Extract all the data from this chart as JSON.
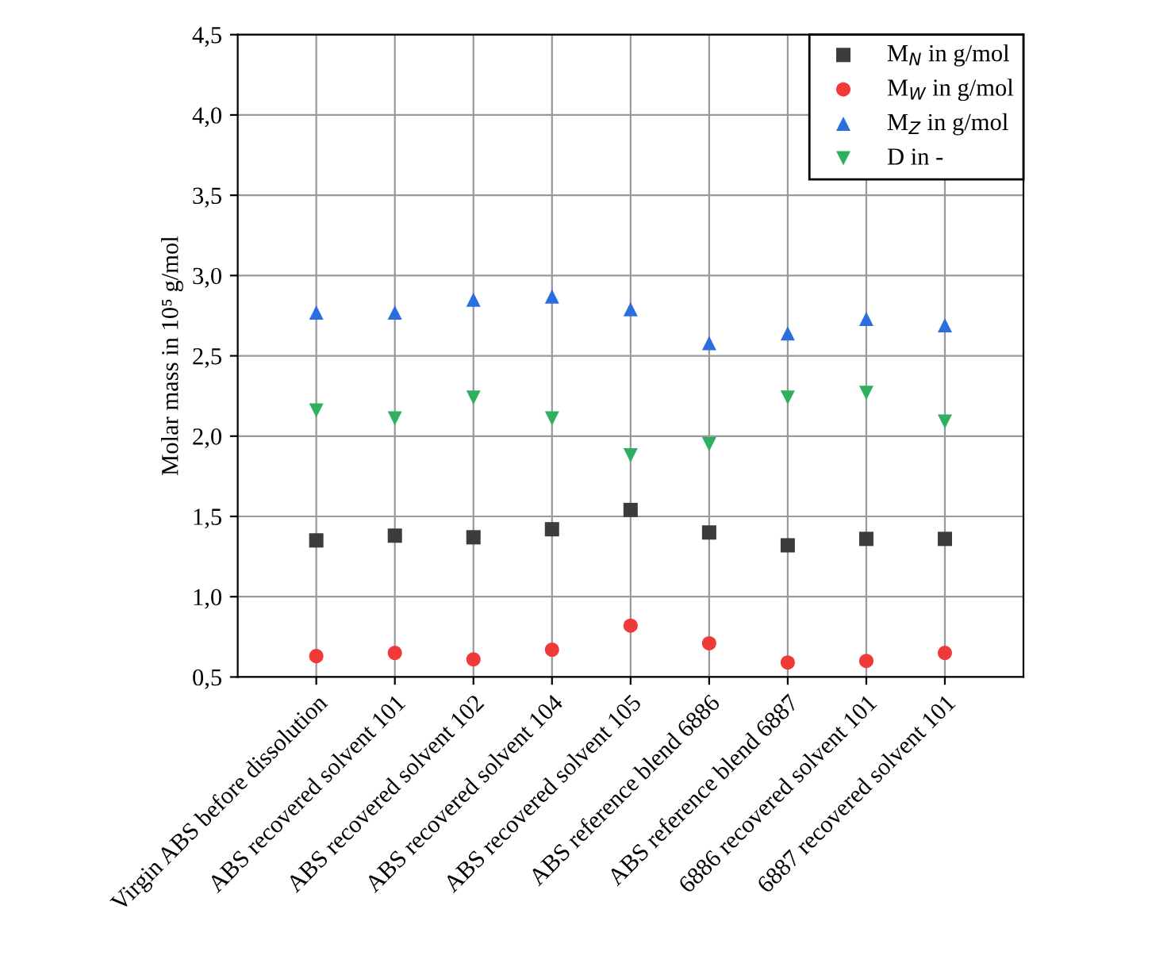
{
  "chart_data": {
    "type": "scatter",
    "ylabel": "Molar mass in 10⁵ g/mol",
    "categories": [
      "Virgin ABS before dissolution",
      "ABS recovered solvent 101",
      "ABS recovered solvent 102",
      "ABS recovered solvent 104",
      "ABS recovered solvent 105",
      "ABS reference blend 6886",
      "ABS reference blend 6887",
      "6886 recovered solvent 101",
      "6887 recovered solvent 101"
    ],
    "series": [
      {
        "name": "M$_{N}$ in g/mol",
        "color": "#3c3c3c",
        "marker": "square",
        "values": [
          1.35,
          1.38,
          1.37,
          1.42,
          1.54,
          1.4,
          1.32,
          1.36,
          1.36
        ]
      },
      {
        "name": "M$_{W}$ in g/mol",
        "color": "#f03a3a",
        "marker": "circle",
        "values": [
          0.63,
          0.65,
          0.61,
          0.67,
          0.82,
          0.71,
          0.59,
          0.6,
          0.65
        ]
      },
      {
        "name": "M$_{Z}$ in g/mol",
        "color": "#2a6fe0",
        "marker": "triangle",
        "values": [
          2.77,
          2.77,
          2.85,
          2.87,
          2.79,
          2.58,
          2.64,
          2.73,
          2.69
        ]
      },
      {
        "name": "D in -",
        "color": "#2fb060",
        "marker": "triangle_down",
        "values": [
          2.16,
          2.11,
          2.24,
          2.11,
          1.88,
          1.95,
          2.24,
          2.27,
          2.09
        ]
      }
    ],
    "ylim": [
      0.5,
      4.5
    ],
    "yticks": [
      {
        "value": 0.5,
        "label": "0,5"
      },
      {
        "value": 1.0,
        "label": "1,0"
      },
      {
        "value": 1.5,
        "label": "1,5"
      },
      {
        "value": 2.0,
        "label": "2,0"
      },
      {
        "value": 2.5,
        "label": "2,5"
      },
      {
        "value": 3.0,
        "label": "3,0"
      },
      {
        "value": 3.5,
        "label": "3,5"
      },
      {
        "value": 4.0,
        "label": "4,0"
      },
      {
        "value": 4.5,
        "label": "4,5"
      }
    ],
    "grid": true,
    "legend": "top right"
  }
}
